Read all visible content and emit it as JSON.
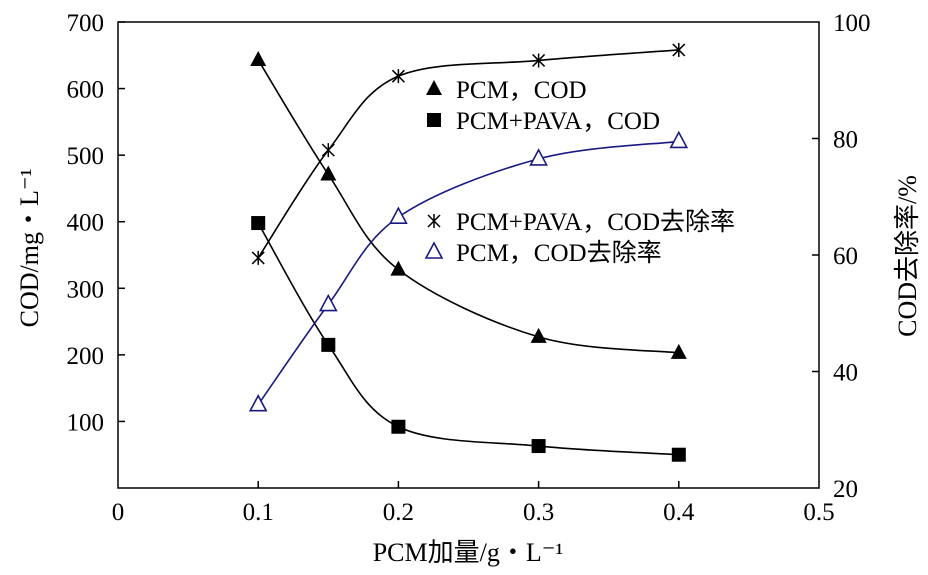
{
  "chart_data": {
    "type": "line",
    "title": "",
    "xlabel": "PCM加量/g・L⁻¹",
    "ylabel_left": "COD/mg・L⁻¹",
    "ylabel_right": "COD去除率/%",
    "xlim": [
      0,
      0.5
    ],
    "ylim_left": [
      0,
      700
    ],
    "ylim_right": [
      20,
      100
    ],
    "x_ticks": [
      "0",
      "0.1",
      "0.2",
      "0.3",
      "0.4",
      "0.5"
    ],
    "y_left_ticks": [
      "100",
      "200",
      "300",
      "400",
      "500",
      "600",
      "700"
    ],
    "y_right_ticks": [
      "20",
      "40",
      "60",
      "80",
      "100"
    ],
    "grid": false,
    "legend_position": "right, inside plot area",
    "series": [
      {
        "name": "PCM，COD",
        "axis": "left",
        "marker": "filled-triangle",
        "color": "#000000",
        "x": [
          0.1,
          0.15,
          0.2,
          0.3,
          0.4
        ],
        "values": [
          643,
          471,
          328,
          227,
          203
        ]
      },
      {
        "name": "PCM+PAVA，COD",
        "axis": "left",
        "marker": "filled-square",
        "color": "#000000",
        "x": [
          0.1,
          0.15,
          0.2,
          0.3,
          0.4
        ],
        "values": [
          398,
          215,
          92,
          63,
          50
        ]
      },
      {
        "name": "PCM+PAVA，COD去除率",
        "axis": "right",
        "marker": "asterisk",
        "color": "#000000",
        "x": [
          0.1,
          0.15,
          0.2,
          0.3,
          0.4
        ],
        "values": [
          59.5,
          78.0,
          90.7,
          93.4,
          95.2
        ]
      },
      {
        "name": "PCM，COD去除率",
        "axis": "right",
        "marker": "open-triangle",
        "color": "#1a1a80",
        "x": [
          0.1,
          0.15,
          0.2,
          0.3,
          0.4
        ],
        "values": [
          34.3,
          51.5,
          66.5,
          76.5,
          79.5
        ]
      }
    ]
  }
}
